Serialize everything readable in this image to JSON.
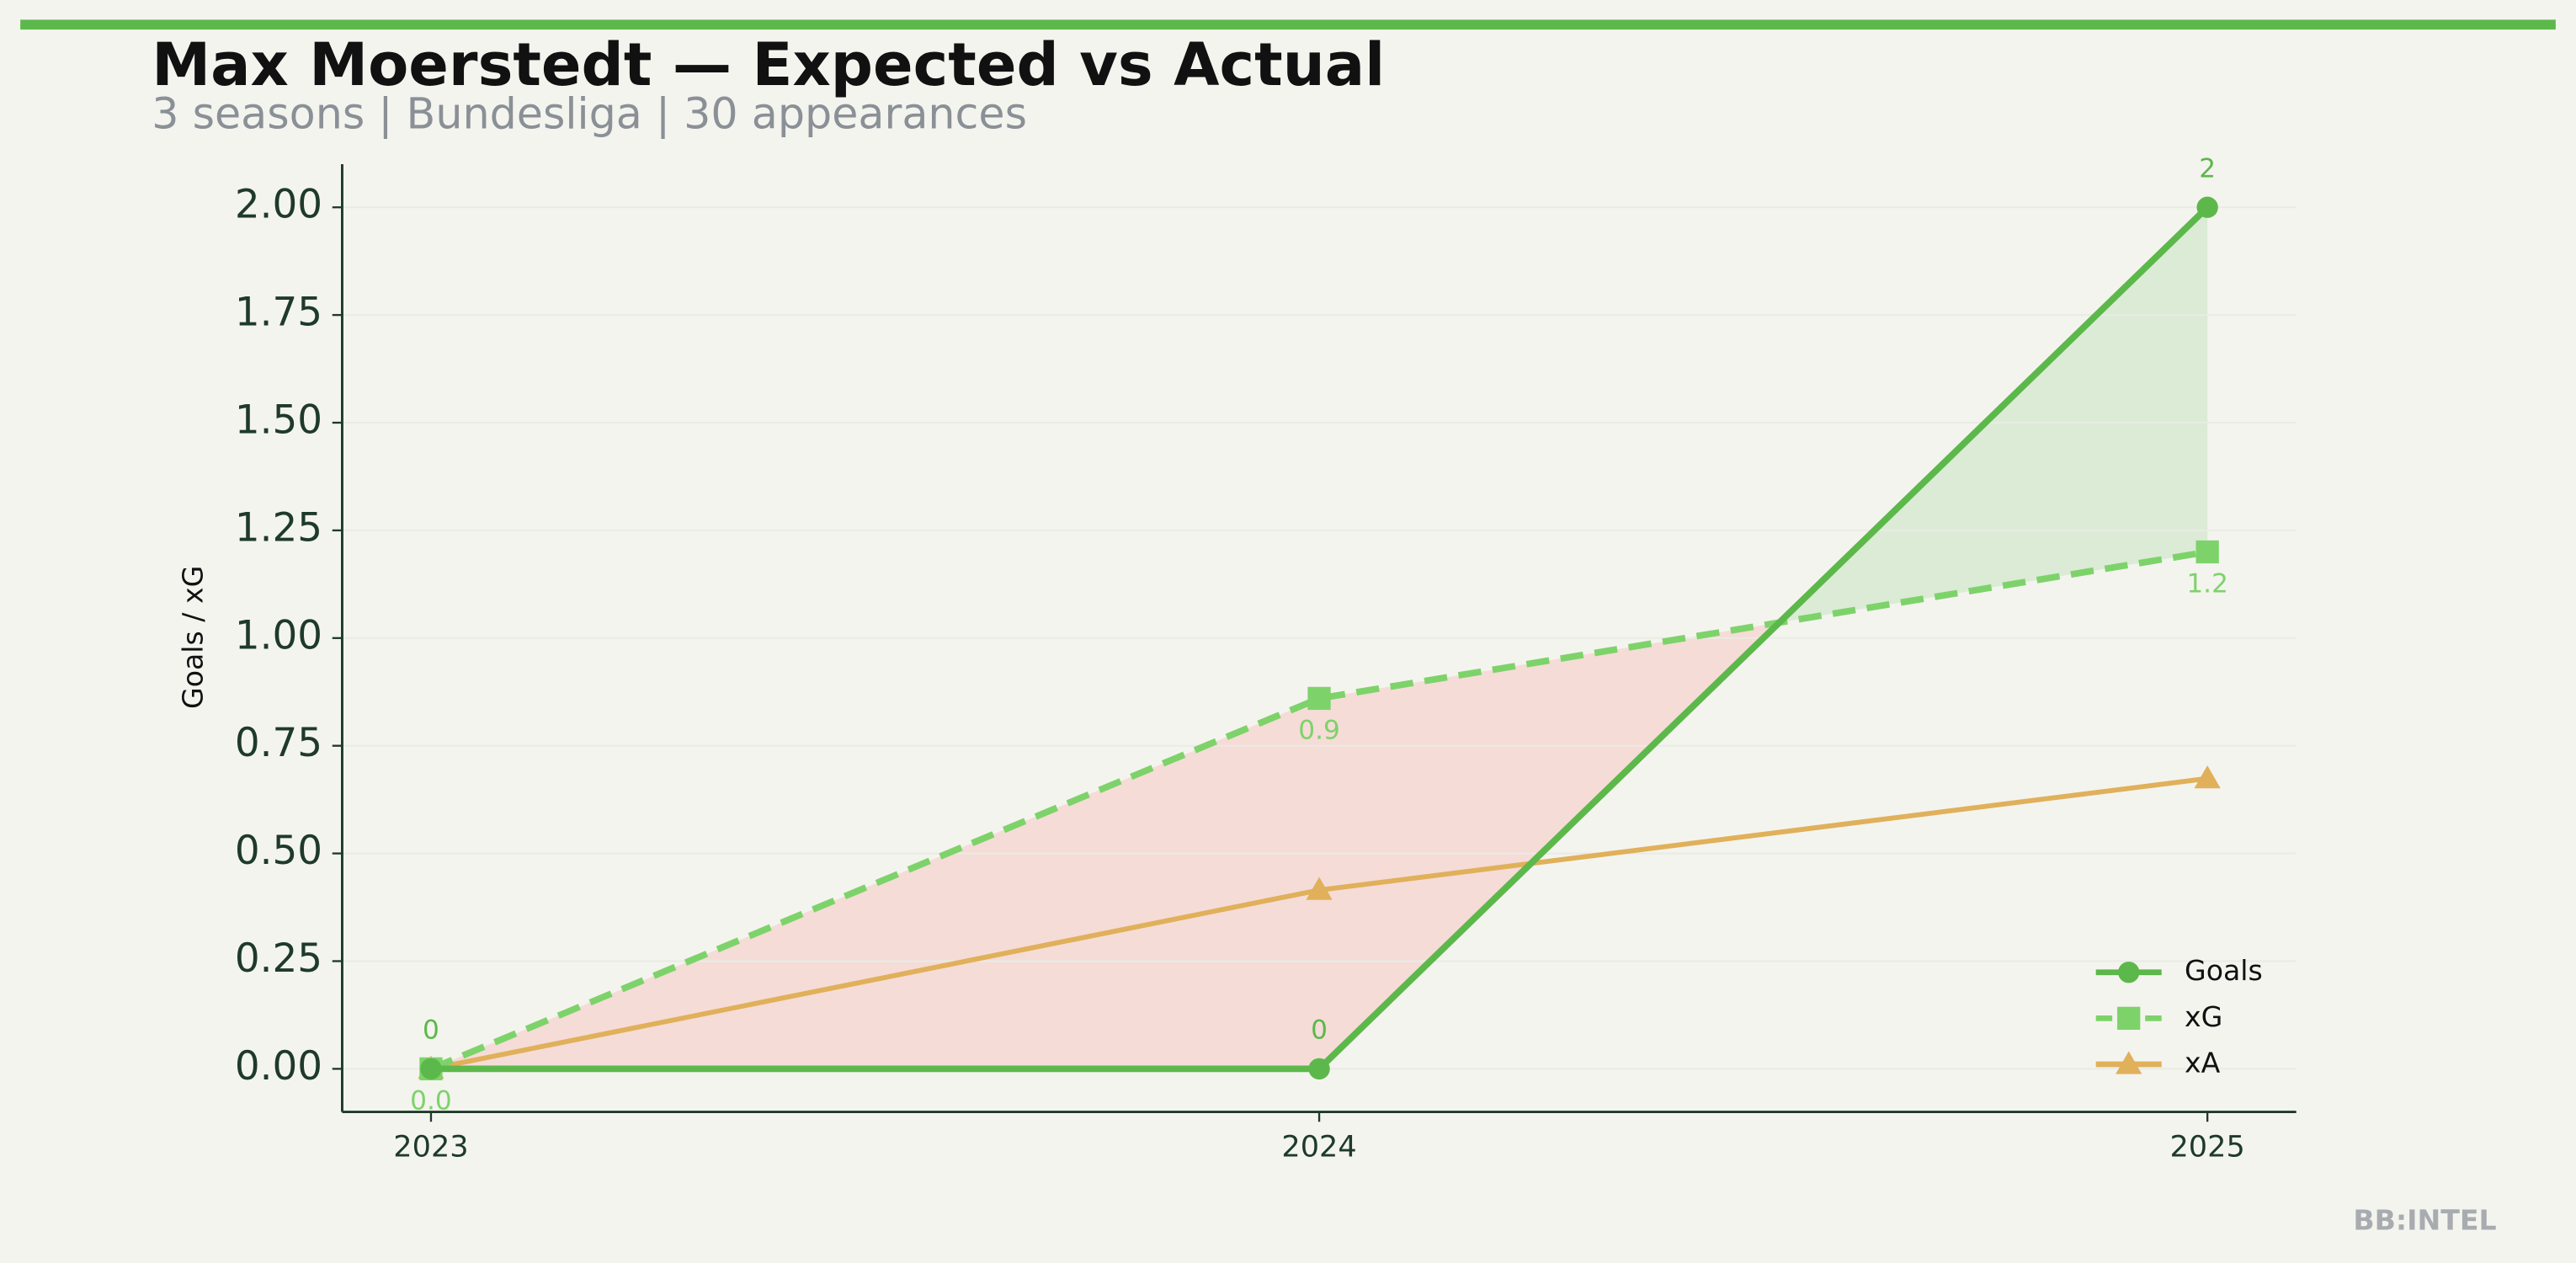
{
  "chart_data": {
    "type": "line",
    "title": "Max Moerstedt — Expected vs Actual",
    "subtitle": "3 seasons | Bundesliga | 30 appearances",
    "y_label": "Goals / xG",
    "watermark": "BB:INTEL",
    "x": [
      2023,
      2024,
      2025
    ],
    "xlim": [
      2022.9,
      2025.1
    ],
    "xticks": [
      2023,
      2024,
      2025
    ],
    "ylim": [
      -0.1,
      2.1
    ],
    "yticks": [
      {
        "value": 0,
        "label": "0.00"
      },
      {
        "value": 0.25,
        "label": "0.25"
      },
      {
        "value": 0.5,
        "label": "0.50"
      },
      {
        "value": 0.75,
        "label": "0.75"
      },
      {
        "value": 1,
        "label": "1.00"
      },
      {
        "value": 1.25,
        "label": "1.25"
      },
      {
        "value": 1.5,
        "label": "1.50"
      },
      {
        "value": 1.75,
        "label": "1.75"
      },
      {
        "value": 2,
        "label": "2.00"
      }
    ],
    "grid": true,
    "legend": "lower right",
    "series": [
      {
        "name": "Goals",
        "color": "#5cb84a",
        "values": [
          0,
          0,
          2
        ],
        "marker": "circle"
      },
      {
        "name": "xG",
        "color": "#7dd36a",
        "values": [
          0,
          0.86,
          1.2
        ],
        "value_labels": [
          "0.0",
          "0.9",
          "1.2"
        ],
        "marker": "square",
        "dash": true
      },
      {
        "name": "xA",
        "color": "#e0b05a",
        "values": [
          0,
          0.415,
          0.674
        ],
        "marker": "triangle"
      }
    ]
  }
}
